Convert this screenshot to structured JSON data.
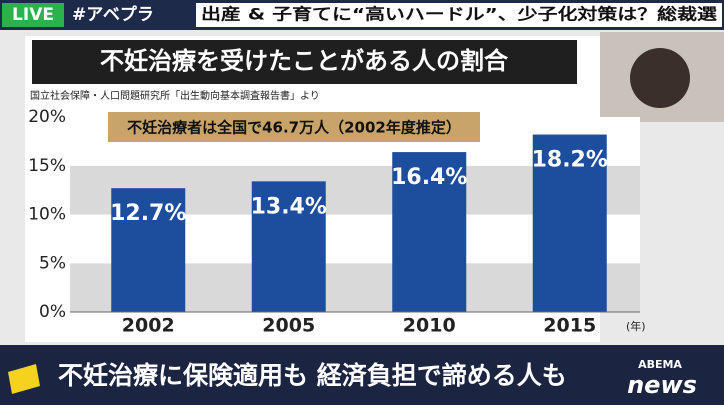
{
  "header": {
    "live": "LIVE",
    "hashtag": "#アベプラ",
    "headline": "出産 & 子育てに“高いハードル”、少子化対策は？総裁選"
  },
  "chart_data": {
    "type": "bar",
    "title": "不妊治療を受けたことがある人の割合",
    "source": "国立社会保障・人口問題研究所「出生動向基本調査報告書」より",
    "annotation": "不妊治療者は全国で46.7万人（2002年度推定）",
    "categories": [
      "2002",
      "2005",
      "2010",
      "2015"
    ],
    "x_unit": "(年)",
    "values": [
      12.7,
      13.4,
      16.4,
      18.2
    ],
    "value_labels": [
      "12.7%",
      "13.4%",
      "16.4%",
      "18.2%"
    ],
    "color": "#1d4e9e",
    "ylim": [
      0,
      20
    ],
    "yticks": [
      {
        "value": 0,
        "label": "0%"
      },
      {
        "value": 5,
        "label": "5%"
      },
      {
        "value": 10,
        "label": "10%"
      },
      {
        "value": 15,
        "label": "15%"
      },
      {
        "value": 20,
        "label": "20%"
      }
    ],
    "grid": true
  },
  "caption": "不妊治療に保険適用も 経済負担で諦める人も",
  "logo": {
    "top": "ABEMA",
    "bottom": "news"
  }
}
